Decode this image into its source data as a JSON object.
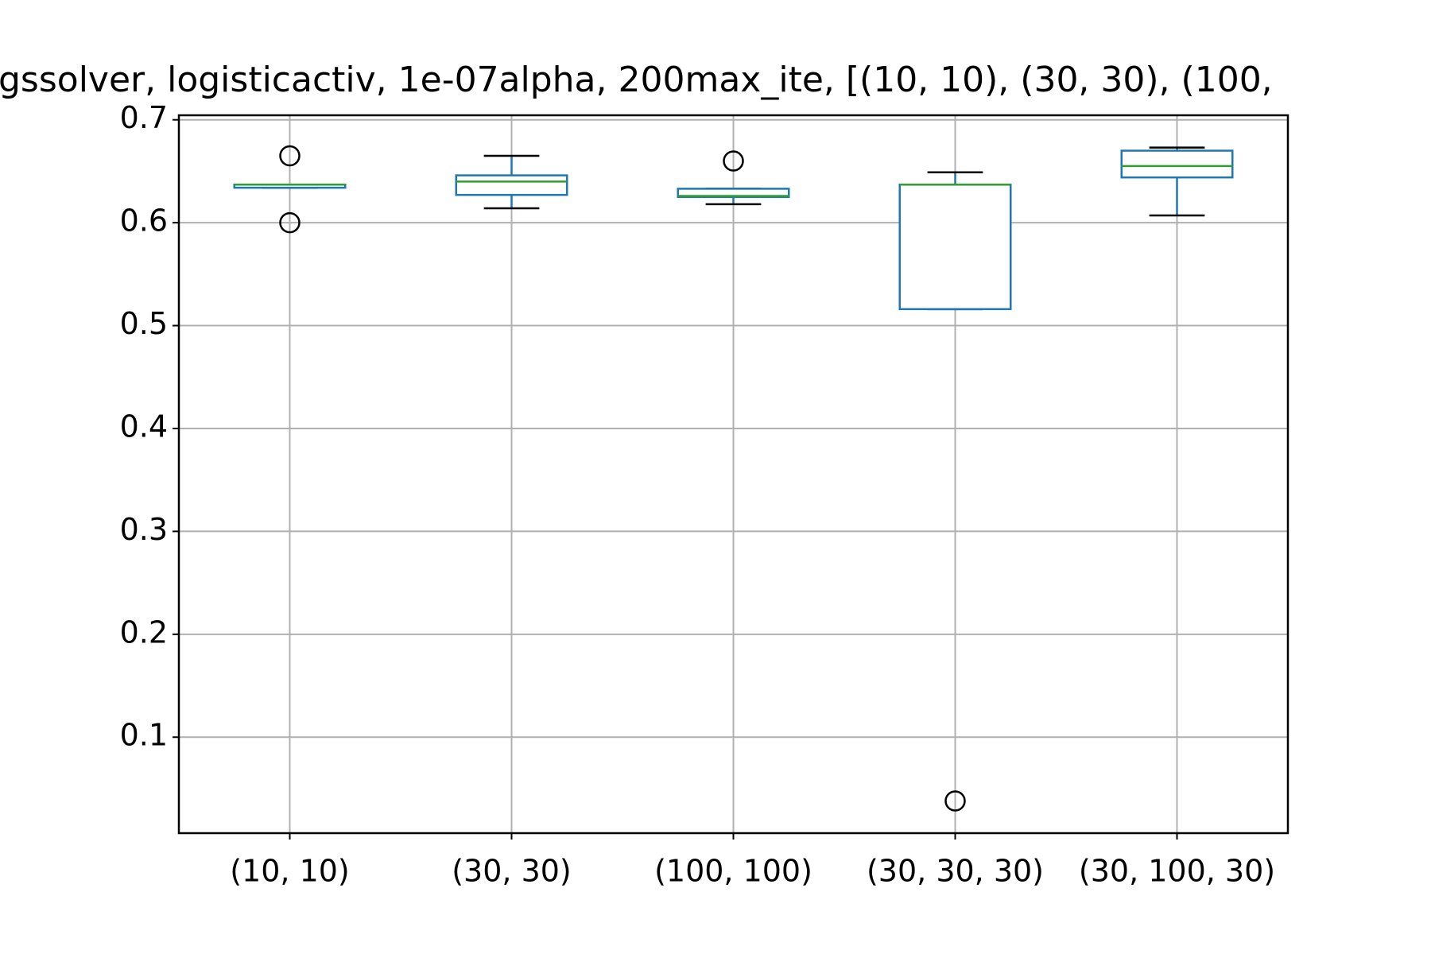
{
  "chart_data": {
    "type": "box",
    "title": "gssolver, logisticactiv, 1e-07alpha, 200max_ite, [(10, 10), (30, 30), (100,",
    "categories": [
      "(10, 10)",
      "(30, 30)",
      "(100, 100)",
      "(30, 30, 30)",
      "(30, 100, 30)"
    ],
    "boxes": [
      {
        "whisker_low": 0.634,
        "q1": 0.634,
        "median": 0.637,
        "q3": 0.637,
        "whisker_high": 0.637,
        "outliers": [
          0.665,
          0.6
        ]
      },
      {
        "whisker_low": 0.614,
        "q1": 0.627,
        "median": 0.64,
        "q3": 0.646,
        "whisker_high": 0.665,
        "outliers": []
      },
      {
        "whisker_low": 0.618,
        "q1": 0.625,
        "median": 0.626,
        "q3": 0.633,
        "whisker_high": 0.633,
        "outliers": [
          0.66
        ]
      },
      {
        "whisker_low": 0.516,
        "q1": 0.516,
        "median": 0.637,
        "q3": 0.637,
        "whisker_high": 0.649,
        "outliers": [
          0.038
        ]
      },
      {
        "whisker_low": 0.607,
        "q1": 0.644,
        "median": 0.655,
        "q3": 0.67,
        "whisker_high": 0.673,
        "outliers": []
      }
    ],
    "box_color": "#1f77b4",
    "median_color": "#2ca02c",
    "whisker_color": "#000000",
    "ylim": [
      0.0067,
      0.7044
    ],
    "yticks": [
      0.1,
      0.2,
      0.3,
      0.4,
      0.5,
      0.6,
      0.7
    ],
    "grid": true
  }
}
